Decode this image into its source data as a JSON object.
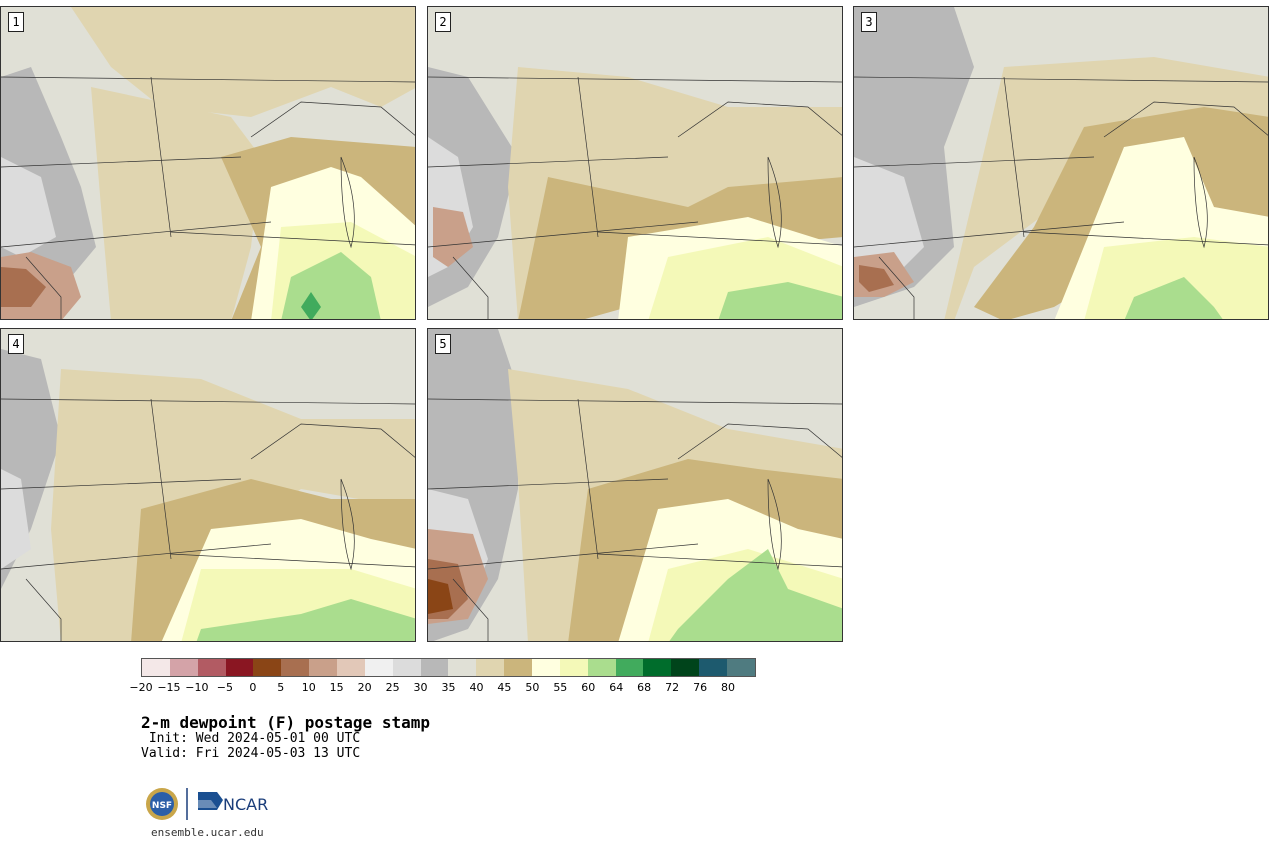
{
  "panels": [
    {
      "member": "1"
    },
    {
      "member": "2"
    },
    {
      "member": "3"
    },
    {
      "member": "4"
    },
    {
      "member": "5"
    }
  ],
  "colorbar": {
    "colors": [
      "#f4e8e8",
      "#d4a3a8",
      "#b25b63",
      "#8a1622",
      "#8a4516",
      "#a86f50",
      "#c9a08a",
      "#e2c8b8",
      "#f0f0f0",
      "#dcdcdc",
      "#b8b8b8",
      "#e0e0d6",
      "#e0d5b0",
      "#cbb57c",
      "#ffffe0",
      "#f4f9b8",
      "#aadd8e",
      "#41ab5d",
      "#006d2c",
      "#00441b",
      "#1d5a6e",
      "#4f7b80"
    ],
    "tick_labels": [
      "−20",
      "−15",
      "−10",
      "−5",
      "0",
      "5",
      "10",
      "15",
      "20",
      "25",
      "30",
      "35",
      "40",
      "45",
      "50",
      "55",
      "60",
      "64",
      "68",
      "72",
      "76",
      "80"
    ]
  },
  "title": "2-m dewpoint (F) postage stamp",
  "init": " Init: Wed 2024-05-01 00 UTC",
  "valid": "Valid: Fri 2024-05-03 13 UTC",
  "logos": {
    "nsf": "NSF",
    "ncar": "NCAR"
  },
  "url": "ensemble.ucar.edu"
}
